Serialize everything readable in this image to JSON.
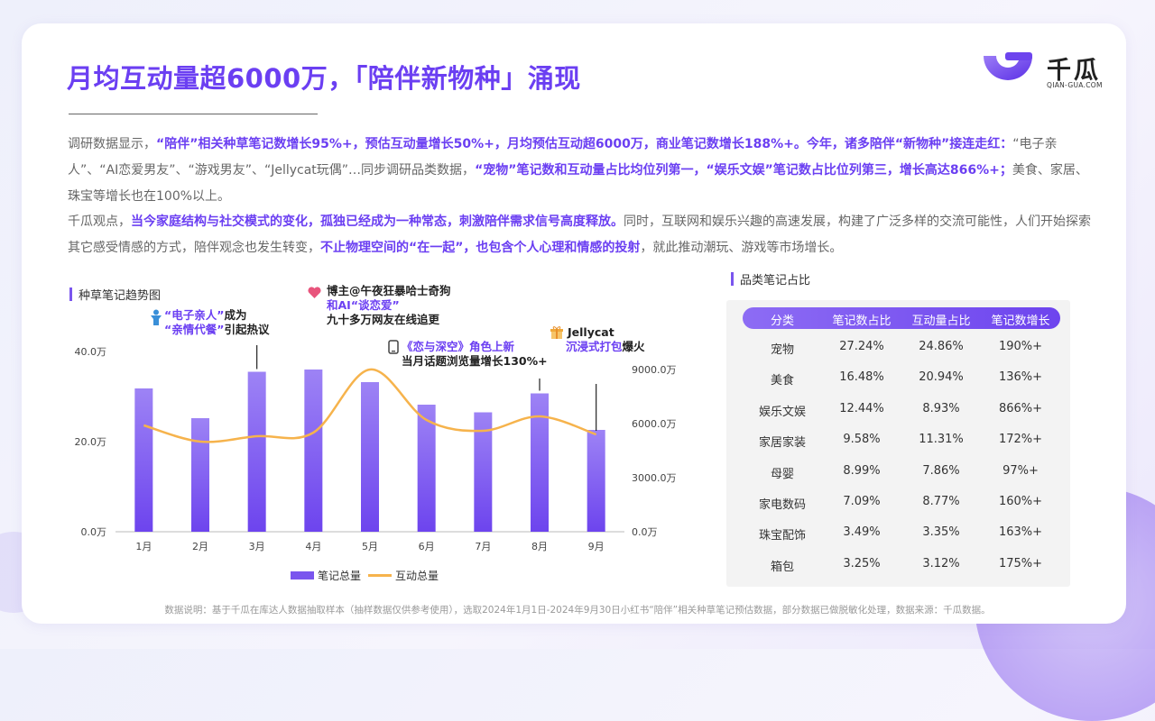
{
  "header": {
    "title": "月均互动量超6000万，「陪伴新物种」涌现",
    "logo_cn": "千瓜",
    "logo_en": "QIAN-GUA.COM"
  },
  "paragraph1": {
    "s1": "调研数据显示，",
    "s2": "“陪伴”相关种草笔记数增长95%+，预估互动量增长50%+，月均预估互动超6000万，商业笔记数增长188%+。今年，诸多陪伴“新物种”接连走红：",
    "s3": "“电子亲人”、“AI恋爱男友”、“游戏男友”、“Jellycat玩偶”…同步调研品类数据，",
    "s4": "“宠物”笔记数和互动量占比均位列第一，“娱乐文娱”笔记数占比位列第三，增长高达866%+；",
    "s5": "美食、家居、珠宝等增长也在100%以上。"
  },
  "paragraph2": {
    "s1": "千瓜观点，",
    "s2": "当今家庭结构与社交模式的变化，孤独已经成为一种常态，刺激陪伴需求信号高度释放。",
    "s3": "同时，互联网和娱乐兴趣的高速发展，构建了广泛多样的交流可能性，人们开始探索其它感受情感的方式，陪伴观念也发生转变，",
    "s4": "不止物理空间的“在一起”，也包含个人心理和情感的投射",
    "s5": "，就此推动潮玩、游戏等市场增长。"
  },
  "left_section_title": "种草笔记趋势图",
  "right_section_title": "品类笔记占比",
  "annotations": {
    "a1_l1_purple": "“电子亲人”",
    "a1_l1_black": "成为",
    "a1_l2_purple": "“亲情代餐”",
    "a1_l2_black": "引起热议",
    "a2_l1": "博主@午夜狂暴哈士奇狗",
    "a2_l2": "和AI“谈恋爱”",
    "a2_l3": "九十多万网友在线追更",
    "a3_l1": "《恋与深空》角色上新",
    "a3_l2": "当月话题浏览量增长130%+",
    "a4_l1": "Jellycat",
    "a4_l2_purple": "沉浸式打包",
    "a4_l2_black": "爆火"
  },
  "chart_data": {
    "type": "bar",
    "categories": [
      "1月",
      "2月",
      "3月",
      "4月",
      "5月",
      "6月",
      "7月",
      "8月",
      "9月"
    ],
    "series": [
      {
        "name": "笔记总量",
        "type": "bar",
        "axis": "left",
        "values": [
          31.8,
          25.2,
          35.5,
          36.0,
          33.2,
          28.2,
          26.5,
          30.7,
          22.6
        ]
      },
      {
        "name": "互动总量",
        "type": "line",
        "axis": "right",
        "values": [
          5900,
          5000,
          5300,
          5500,
          9000,
          6200,
          5600,
          6400,
          5400
        ]
      }
    ],
    "y_left": {
      "ticks": [
        "0.0万",
        "20.0万",
        "40.0万"
      ],
      "range": [
        0,
        40
      ]
    },
    "y_right": {
      "ticks": [
        "0.0万",
        "3000.0万",
        "6000.0万",
        "9000.0万"
      ],
      "range": [
        0,
        9000
      ]
    },
    "legend_position": "bottom",
    "colors": {
      "bar": "#7a55ee",
      "line": "#f6b34c"
    }
  },
  "table": {
    "headers": [
      "分类",
      "笔记数占比",
      "互动量占比",
      "笔记数增长"
    ],
    "rows": [
      [
        "宠物",
        "27.24%",
        "24.86%",
        "190%+"
      ],
      [
        "美食",
        "16.48%",
        "20.94%",
        "136%+"
      ],
      [
        "娱乐文娱",
        "12.44%",
        "8.93%",
        "866%+"
      ],
      [
        "家居家装",
        "9.58%",
        "11.31%",
        "172%+"
      ],
      [
        "母婴",
        "8.99%",
        "7.86%",
        "97%+"
      ],
      [
        "家电数码",
        "7.09%",
        "8.77%",
        "160%+"
      ],
      [
        "珠宝配饰",
        "3.49%",
        "3.35%",
        "163%+"
      ],
      [
        "箱包",
        "3.25%",
        "3.12%",
        "175%+"
      ]
    ]
  },
  "footnote": "数据说明：基于千瓜在库达人数据抽取样本（抽样数据仅供参考使用），选取2024年1月1日-2024年9月30日小红书“陪伴”相关种草笔记预估数据，部分数据已做脱敏化处理，数据来源：千瓜数据。"
}
